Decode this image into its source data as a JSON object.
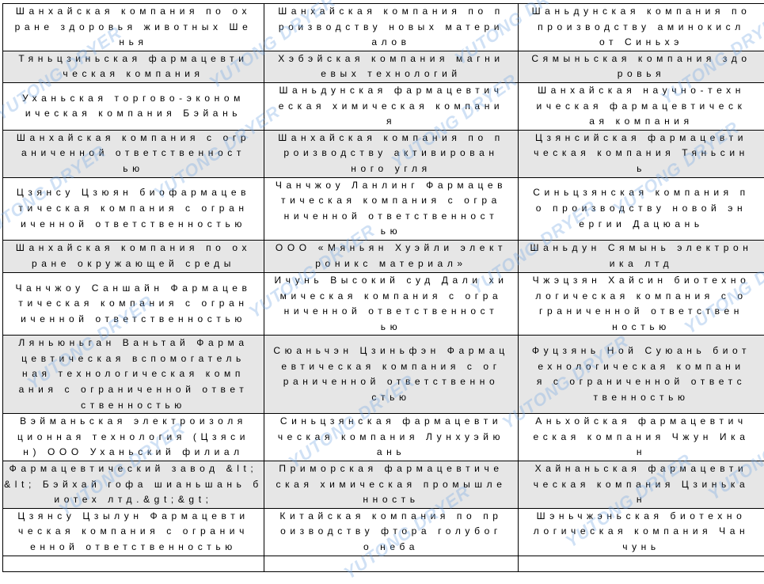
{
  "watermark": "YUTONG DRYER",
  "table": {
    "rows": [
      {
        "shaded": false,
        "cells": [
          [
            "Шанхайская компания по ох",
            "ране здоровья животных Ше",
            "нья"
          ],
          [
            "Шанхайская компания по п",
            "роизводству новых матери",
            "алов"
          ],
          [
            "Шаньдунская компания по",
            "производству аминокисл",
            "от Синьхэ"
          ]
        ]
      },
      {
        "shaded": true,
        "cells": [
          [
            "Тяньцзиньская фармацевти",
            "ческая компания"
          ],
          [
            "Хэбэйская компания магни",
            "евых технологий"
          ],
          [
            "Сямыньская компания здо",
            "ровья"
          ]
        ]
      },
      {
        "shaded": false,
        "cells": [
          [
            "Уханьская торгово-эконом",
            "ическая компания Бэйань"
          ],
          [
            "Шаньдунская фармацевтич",
            "еская химическая компани",
            "я"
          ],
          [
            "Шанхайская научно-техн",
            "ическая фармацевтическ",
            "ая компания"
          ]
        ]
      },
      {
        "shaded": true,
        "cells": [
          [
            "Шанхайская компания с огр",
            "аниченной ответственност",
            "ью"
          ],
          [
            "Шанхайская компания по п",
            "роизводству активирован",
            "ного угля"
          ],
          [
            "Цзянсийская фармацевти",
            "ческая компания Тяньсин",
            "ь"
          ]
        ]
      },
      {
        "shaded": false,
        "cells": [
          [
            "Цзянсу Цзюян биофармацев",
            "тическая компания с огран",
            "иченной ответственностью"
          ],
          [
            "Чанчжоу Ланлинг Фармацев",
            "тическая компания с огра",
            "ниченной ответственност",
            "ью"
          ],
          [
            "Синьцзянская компания п",
            "о производству новой эн",
            "ергии Дацюань"
          ]
        ]
      },
      {
        "shaded": true,
        "cells": [
          [
            "Шанхайская компания по ох",
            "ране окружающей среды"
          ],
          [
            "ООО «Мяньян Хуэйли элект",
            "роникс материал»"
          ],
          [
            "Шаньдун Сямынь электрон",
            "ика лтд"
          ]
        ]
      },
      {
        "shaded": false,
        "cells": [
          [
            "Чанчжоу Саншайн Фармацев",
            "тическая компания с огран",
            "иченной ответственностью"
          ],
          [
            "Ичунь Высокий суд Дали хи",
            "мическая компания с огра",
            "ниченной ответственност",
            "ью"
          ],
          [
            "Чжэцзян Хайсин биотехно",
            "логическая компания с о",
            "граниченной ответствен",
            "ностью"
          ]
        ]
      },
      {
        "shaded": true,
        "cells": [
          [
            "Ляньюньган Ваньтай Фарма",
            "цевтическая вспомогатель",
            "ная технологическая комп",
            "ания с ограниченной ответ",
            "ственностью"
          ],
          [
            "Сюаньчэн Цзиньфэн Фармац",
            "евтическая компания с ог",
            "раниченной ответственно",
            "стью"
          ],
          [
            "Фуцзянь Ной Суюань биот",
            "ехнологическая компани",
            "я с ограниченной ответс",
            "твенностью"
          ]
        ]
      },
      {
        "shaded": false,
        "cells": [
          [
            "Вэйманьская электроизоля",
            "ционная технология (Цзяси",
            "н) ООО Уханьский филиал"
          ],
          [
            "Синьцзянская фармацевти",
            "ческая компания Лунхуэйю",
            "ань"
          ],
          [
            "Аньхойская фармацевтич",
            "еская компания Чжун Ика",
            "н"
          ]
        ]
      },
      {
        "shaded": true,
        "cells": [
          [
            "Фармацевтический завод &lt;",
            "&lt; Бэйхай гофа шианьшань б",
            "иотех лтд.&gt;&gt;"
          ],
          [
            "Приморская фармацевтиче",
            "ская химическая промышле",
            "нность"
          ],
          [
            "Хайнаньская фармацевти",
            "ческая компания Цзинька",
            "н"
          ]
        ]
      },
      {
        "shaded": false,
        "cells": [
          [
            "Цзянсу Цзылун Фармацевти",
            "ческая компания с огранич",
            "енной ответственностью"
          ],
          [
            "Китайская компания по пр",
            "оизводству фтора голубог",
            "о неба"
          ],
          [
            "Шэньчжэньская биотехно",
            "логическая компания Чан",
            "чунь"
          ]
        ]
      },
      {
        "shaded": false,
        "cells": [
          [
            ""
          ],
          [
            ""
          ],
          [
            ""
          ]
        ]
      }
    ]
  }
}
